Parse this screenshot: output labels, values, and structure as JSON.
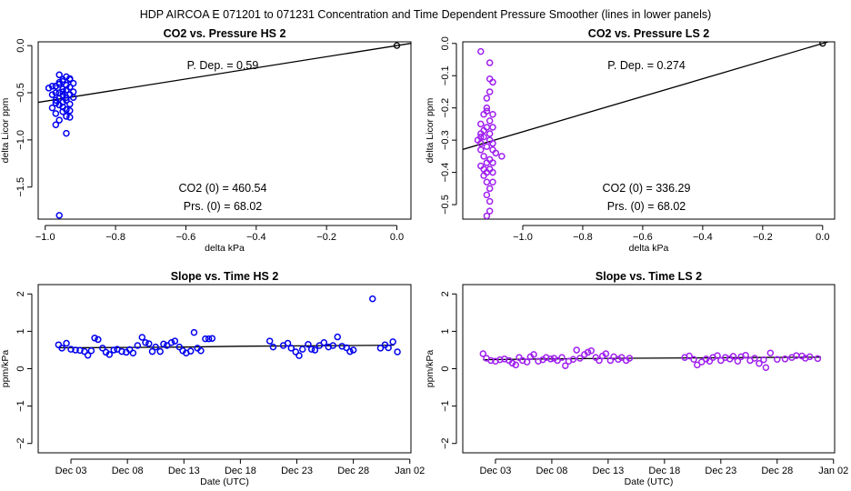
{
  "suptitle": "HDP    AIRCOA E    071201 to 071231    Concentration and Time Dependent Pressure Smoother (lines in lower panels)",
  "colors": {
    "hs": "#0000ee",
    "ls": "#a020f0",
    "axis": "#000000"
  },
  "chart_data": [
    {
      "id": "co2-pressure-hs2",
      "type": "scatter",
      "title": "CO2 vs. Pressure HS 2",
      "xlabel": "delta kPa",
      "ylabel": "delta Licor ppm",
      "xlim": [
        -1.02,
        0.04
      ],
      "ylim": [
        -1.84,
        0.04
      ],
      "xticks": [
        -1.0,
        -0.8,
        -0.6,
        -0.4,
        -0.2,
        0.0
      ],
      "xtick_labels": [
        "−1.0",
        "−0.8",
        "−0.6",
        "−0.4",
        "−0.2",
        "0.0"
      ],
      "yticks": [
        0.0,
        -0.5,
        -1.0,
        -1.5
      ],
      "ytick_labels": [
        "0.0",
        "−0.5",
        "−1.0",
        "−1.5"
      ],
      "color_key": "hs",
      "origin_point": [
        0.0,
        0.0
      ],
      "fit_line": {
        "slope": 0.59,
        "intercept": 0.0
      },
      "annotations": {
        "p_dep": "P. Dep. =  0.59",
        "co2_0": "CO2 (0) =  460.54",
        "prs_0": "Prs. (0) =  68.02"
      },
      "points": [
        [
          -0.97,
          -0.43
        ],
        [
          -0.96,
          -0.5
        ],
        [
          -0.95,
          -0.38
        ],
        [
          -0.94,
          -0.55
        ],
        [
          -0.93,
          -0.62
        ],
        [
          -0.96,
          -0.31
        ],
        [
          -0.95,
          -0.36
        ],
        [
          -0.94,
          -0.33
        ],
        [
          -0.93,
          -0.44
        ],
        [
          -0.92,
          -0.4
        ],
        [
          -0.99,
          -0.45
        ],
        [
          -0.98,
          -0.52
        ],
        [
          -0.97,
          -0.58
        ],
        [
          -0.96,
          -0.63
        ],
        [
          -0.95,
          -0.7
        ],
        [
          -0.94,
          -0.75
        ],
        [
          -0.93,
          -0.69
        ],
        [
          -0.92,
          -0.55
        ],
        [
          -0.97,
          -0.84
        ],
        [
          -0.96,
          -0.79
        ],
        [
          -0.95,
          -0.6
        ],
        [
          -0.94,
          -0.47
        ],
        [
          -0.93,
          -0.52
        ],
        [
          -0.92,
          -0.49
        ],
        [
          -0.98,
          -0.66
        ],
        [
          -0.97,
          -0.72
        ],
        [
          -0.96,
          -0.56
        ],
        [
          -0.95,
          -0.46
        ],
        [
          -0.94,
          -0.42
        ],
        [
          -0.93,
          -0.36
        ],
        [
          -0.94,
          -0.93
        ],
        [
          -0.96,
          -1.8
        ],
        [
          -0.95,
          -0.53
        ],
        [
          -0.94,
          -0.58
        ],
        [
          -0.93,
          -0.35
        ],
        [
          -0.97,
          -0.5
        ],
        [
          -0.96,
          -0.41
        ],
        [
          -0.98,
          -0.43
        ],
        [
          -0.95,
          -0.65
        ],
        [
          -0.94,
          -0.68
        ],
        [
          -0.93,
          -0.76
        ],
        [
          -0.96,
          -0.39
        ],
        [
          -0.95,
          -0.49
        ],
        [
          -0.97,
          -0.61
        ]
      ]
    },
    {
      "id": "co2-pressure-ls2",
      "type": "scatter",
      "title": "CO2 vs. Pressure LS 2",
      "xlabel": "delta kPa",
      "ylabel": "delta Licor ppm",
      "xlim": [
        -1.2,
        0.04
      ],
      "ylim": [
        -0.545,
        0.005
      ],
      "xticks": [
        -1.0,
        -0.8,
        -0.6,
        -0.4,
        -0.2,
        0.0
      ],
      "xtick_labels": [
        "−1.0",
        "−0.8",
        "−0.6",
        "−0.4",
        "−0.2",
        "0.0"
      ],
      "yticks": [
        0.0,
        -0.1,
        -0.2,
        -0.3,
        -0.4,
        -0.5
      ],
      "ytick_labels": [
        "0.0",
        "−0.1",
        "−0.2",
        "−0.3",
        "−0.4",
        "−0.5"
      ],
      "color_key": "ls",
      "origin_point": [
        0.0,
        0.0
      ],
      "fit_line": {
        "slope": 0.274,
        "intercept": 0.0
      },
      "annotations": {
        "p_dep": "P. Dep. =  0.274",
        "co2_0": "CO2 (0) =  336.29",
        "prs_0": "Prs. (0) =  68.02"
      },
      "points": [
        [
          -1.14,
          -0.025
        ],
        [
          -1.11,
          -0.06
        ],
        [
          -1.1,
          -0.12
        ],
        [
          -1.11,
          -0.15
        ],
        [
          -1.12,
          -0.2
        ],
        [
          -1.13,
          -0.22
        ],
        [
          -1.1,
          -0.22
        ],
        [
          -1.14,
          -0.25
        ],
        [
          -1.12,
          -0.26
        ],
        [
          -1.11,
          -0.28
        ],
        [
          -1.13,
          -0.29
        ],
        [
          -1.14,
          -0.31
        ],
        [
          -1.12,
          -0.32
        ],
        [
          -1.11,
          -0.3
        ],
        [
          -1.1,
          -0.33
        ],
        [
          -1.09,
          -0.34
        ],
        [
          -1.13,
          -0.35
        ],
        [
          -1.12,
          -0.37
        ],
        [
          -1.14,
          -0.38
        ],
        [
          -1.11,
          -0.39
        ],
        [
          -1.1,
          -0.4
        ],
        [
          -1.13,
          -0.41
        ],
        [
          -1.12,
          -0.43
        ],
        [
          -1.11,
          -0.45
        ],
        [
          -1.12,
          -0.47
        ],
        [
          -1.11,
          -0.49
        ],
        [
          -1.11,
          -0.52
        ],
        [
          -1.12,
          -0.535
        ],
        [
          -1.13,
          -0.27
        ],
        [
          -1.14,
          -0.29
        ],
        [
          -1.12,
          -0.21
        ],
        [
          -1.11,
          -0.24
        ],
        [
          -1.1,
          -0.26
        ],
        [
          -1.15,
          -0.3
        ],
        [
          -1.14,
          -0.33
        ],
        [
          -1.11,
          -0.36
        ],
        [
          -1.1,
          -0.37
        ],
        [
          -1.07,
          -0.35
        ],
        [
          -1.13,
          -0.39
        ],
        [
          -1.12,
          -0.4
        ],
        [
          -1.1,
          -0.43
        ],
        [
          -1.11,
          -0.11
        ],
        [
          -1.12,
          -0.17
        ],
        [
          -1.14,
          -0.28
        ],
        [
          -1.1,
          -0.31
        ]
      ]
    },
    {
      "id": "slope-time-hs2",
      "type": "scatter",
      "title": "Slope vs. Time HS 2",
      "xlabel": "Date (UTC)",
      "ylabel": "ppm/kPa",
      "xlim": [
        -0.9,
        32.1
      ],
      "ylim": [
        -2.25,
        2.25
      ],
      "xticks": [
        2,
        7,
        12,
        17,
        22,
        27,
        32
      ],
      "xtick_labels": [
        "Dec 03",
        "Dec 08",
        "Dec 13",
        "Dec 18",
        "Dec 23",
        "Dec 28",
        "Jan 02"
      ],
      "x_unit": "days since Dec 01",
      "yticks": [
        -2,
        -1,
        0,
        1,
        2
      ],
      "ytick_labels": [
        "−2",
        "−1",
        "0",
        "1",
        "2"
      ],
      "color_key": "hs",
      "smoother": [
        [
          0.9,
          0.56
        ],
        [
          7,
          0.57
        ],
        [
          12,
          0.58
        ],
        [
          17,
          0.6
        ],
        [
          22,
          0.61
        ],
        [
          27,
          0.62
        ],
        [
          30.6,
          0.63
        ]
      ],
      "points": [
        [
          0.9,
          0.64
        ],
        [
          1.2,
          0.55
        ],
        [
          1.6,
          0.68
        ],
        [
          2.0,
          0.52
        ],
        [
          2.4,
          0.5
        ],
        [
          2.8,
          0.49
        ],
        [
          3.2,
          0.46
        ],
        [
          3.5,
          0.36
        ],
        [
          3.8,
          0.48
        ],
        [
          4.1,
          0.82
        ],
        [
          4.4,
          0.78
        ],
        [
          4.8,
          0.55
        ],
        [
          5.1,
          0.44
        ],
        [
          5.4,
          0.38
        ],
        [
          5.8,
          0.5
        ],
        [
          6.1,
          0.52
        ],
        [
          6.5,
          0.46
        ],
        [
          6.9,
          0.44
        ],
        [
          7.2,
          0.51
        ],
        [
          7.5,
          0.42
        ],
        [
          7.9,
          0.62
        ],
        [
          8.3,
          0.84
        ],
        [
          8.6,
          0.7
        ],
        [
          8.9,
          0.67
        ],
        [
          9.2,
          0.46
        ],
        [
          9.5,
          0.58
        ],
        [
          9.9,
          0.46
        ],
        [
          10.2,
          0.66
        ],
        [
          10.5,
          0.62
        ],
        [
          10.9,
          0.7
        ],
        [
          11.2,
          0.74
        ],
        [
          11.6,
          0.58
        ],
        [
          11.9,
          0.48
        ],
        [
          12.2,
          0.42
        ],
        [
          12.6,
          0.47
        ],
        [
          12.9,
          0.97
        ],
        [
          13.2,
          0.55
        ],
        [
          13.5,
          0.48
        ],
        [
          13.9,
          0.8
        ],
        [
          14.2,
          0.8
        ],
        [
          14.5,
          0.81
        ],
        [
          19.6,
          0.74
        ],
        [
          19.9,
          0.58
        ],
        [
          20.8,
          0.62
        ],
        [
          21.2,
          0.68
        ],
        [
          21.5,
          0.55
        ],
        [
          21.9,
          0.45
        ],
        [
          22.2,
          0.35
        ],
        [
          22.5,
          0.52
        ],
        [
          23.0,
          0.65
        ],
        [
          23.3,
          0.52
        ],
        [
          23.6,
          0.5
        ],
        [
          24.0,
          0.62
        ],
        [
          24.4,
          0.7
        ],
        [
          24.8,
          0.58
        ],
        [
          25.2,
          0.62
        ],
        [
          25.6,
          0.85
        ],
        [
          26.0,
          0.6
        ],
        [
          26.4,
          0.56
        ],
        [
          26.7,
          0.46
        ],
        [
          27.0,
          0.5
        ],
        [
          28.7,
          1.87
        ],
        [
          29.4,
          0.55
        ],
        [
          29.8,
          0.64
        ],
        [
          30.1,
          0.56
        ],
        [
          30.5,
          0.72
        ],
        [
          30.9,
          0.45
        ]
      ]
    },
    {
      "id": "slope-time-ls2",
      "type": "scatter",
      "title": "Slope vs. Time LS 2",
      "xlabel": "Date (UTC)",
      "ylabel": "ppm/kPa",
      "xlim": [
        -0.9,
        32.1
      ],
      "ylim": [
        -2.25,
        2.25
      ],
      "xticks": [
        2,
        7,
        12,
        17,
        22,
        27,
        32
      ],
      "xtick_labels": [
        "Dec 03",
        "Dec 08",
        "Dec 13",
        "Dec 18",
        "Dec 23",
        "Dec 28",
        "Jan 02"
      ],
      "x_unit": "days since Dec 01",
      "yticks": [
        -2,
        -1,
        0,
        1,
        2
      ],
      "ytick_labels": [
        "−2",
        "−1",
        "0",
        "1",
        "2"
      ],
      "color_key": "ls",
      "smoother": [
        [
          0.9,
          0.24
        ],
        [
          6,
          0.26
        ],
        [
          10,
          0.27
        ],
        [
          14,
          0.28
        ],
        [
          20,
          0.29
        ],
        [
          25,
          0.3
        ],
        [
          30.9,
          0.31
        ]
      ],
      "points": [
        [
          0.9,
          0.4
        ],
        [
          1.2,
          0.28
        ],
        [
          1.6,
          0.22
        ],
        [
          2.0,
          0.2
        ],
        [
          2.4,
          0.24
        ],
        [
          2.8,
          0.26
        ],
        [
          3.2,
          0.22
        ],
        [
          3.5,
          0.15
        ],
        [
          3.8,
          0.1
        ],
        [
          4.1,
          0.3
        ],
        [
          4.4,
          0.22
        ],
        [
          4.8,
          0.18
        ],
        [
          5.1,
          0.32
        ],
        [
          5.4,
          0.38
        ],
        [
          5.8,
          0.2
        ],
        [
          6.2,
          0.24
        ],
        [
          6.5,
          0.3
        ],
        [
          6.9,
          0.26
        ],
        [
          7.2,
          0.28
        ],
        [
          7.5,
          0.22
        ],
        [
          7.9,
          0.3
        ],
        [
          8.2,
          0.08
        ],
        [
          8.5,
          0.2
        ],
        [
          8.9,
          0.25
        ],
        [
          9.2,
          0.5
        ],
        [
          9.5,
          0.28
        ],
        [
          9.9,
          0.38
        ],
        [
          10.2,
          0.44
        ],
        [
          10.5,
          0.48
        ],
        [
          10.9,
          0.3
        ],
        [
          11.2,
          0.22
        ],
        [
          11.5,
          0.34
        ],
        [
          11.8,
          0.4
        ],
        [
          12.2,
          0.22
        ],
        [
          12.5,
          0.32
        ],
        [
          12.9,
          0.25
        ],
        [
          13.2,
          0.3
        ],
        [
          13.6,
          0.22
        ],
        [
          13.9,
          0.28
        ],
        [
          18.8,
          0.3
        ],
        [
          19.2,
          0.34
        ],
        [
          19.6,
          0.25
        ],
        [
          19.9,
          0.1
        ],
        [
          20.3,
          0.18
        ],
        [
          20.7,
          0.26
        ],
        [
          21.0,
          0.2
        ],
        [
          21.3,
          0.3
        ],
        [
          21.7,
          0.35
        ],
        [
          22.0,
          0.22
        ],
        [
          22.4,
          0.3
        ],
        [
          22.8,
          0.26
        ],
        [
          23.1,
          0.33
        ],
        [
          23.5,
          0.2
        ],
        [
          23.8,
          0.32
        ],
        [
          24.2,
          0.36
        ],
        [
          24.6,
          0.22
        ],
        [
          25.0,
          0.28
        ],
        [
          25.4,
          0.14
        ],
        [
          25.8,
          0.24
        ],
        [
          26.0,
          0.03
        ],
        [
          26.4,
          0.42
        ],
        [
          27.0,
          0.25
        ],
        [
          27.7,
          0.26
        ],
        [
          28.3,
          0.3
        ],
        [
          28.7,
          0.35
        ],
        [
          29.2,
          0.34
        ],
        [
          29.5,
          0.28
        ],
        [
          29.9,
          0.32
        ],
        [
          30.6,
          0.27
        ]
      ]
    }
  ]
}
